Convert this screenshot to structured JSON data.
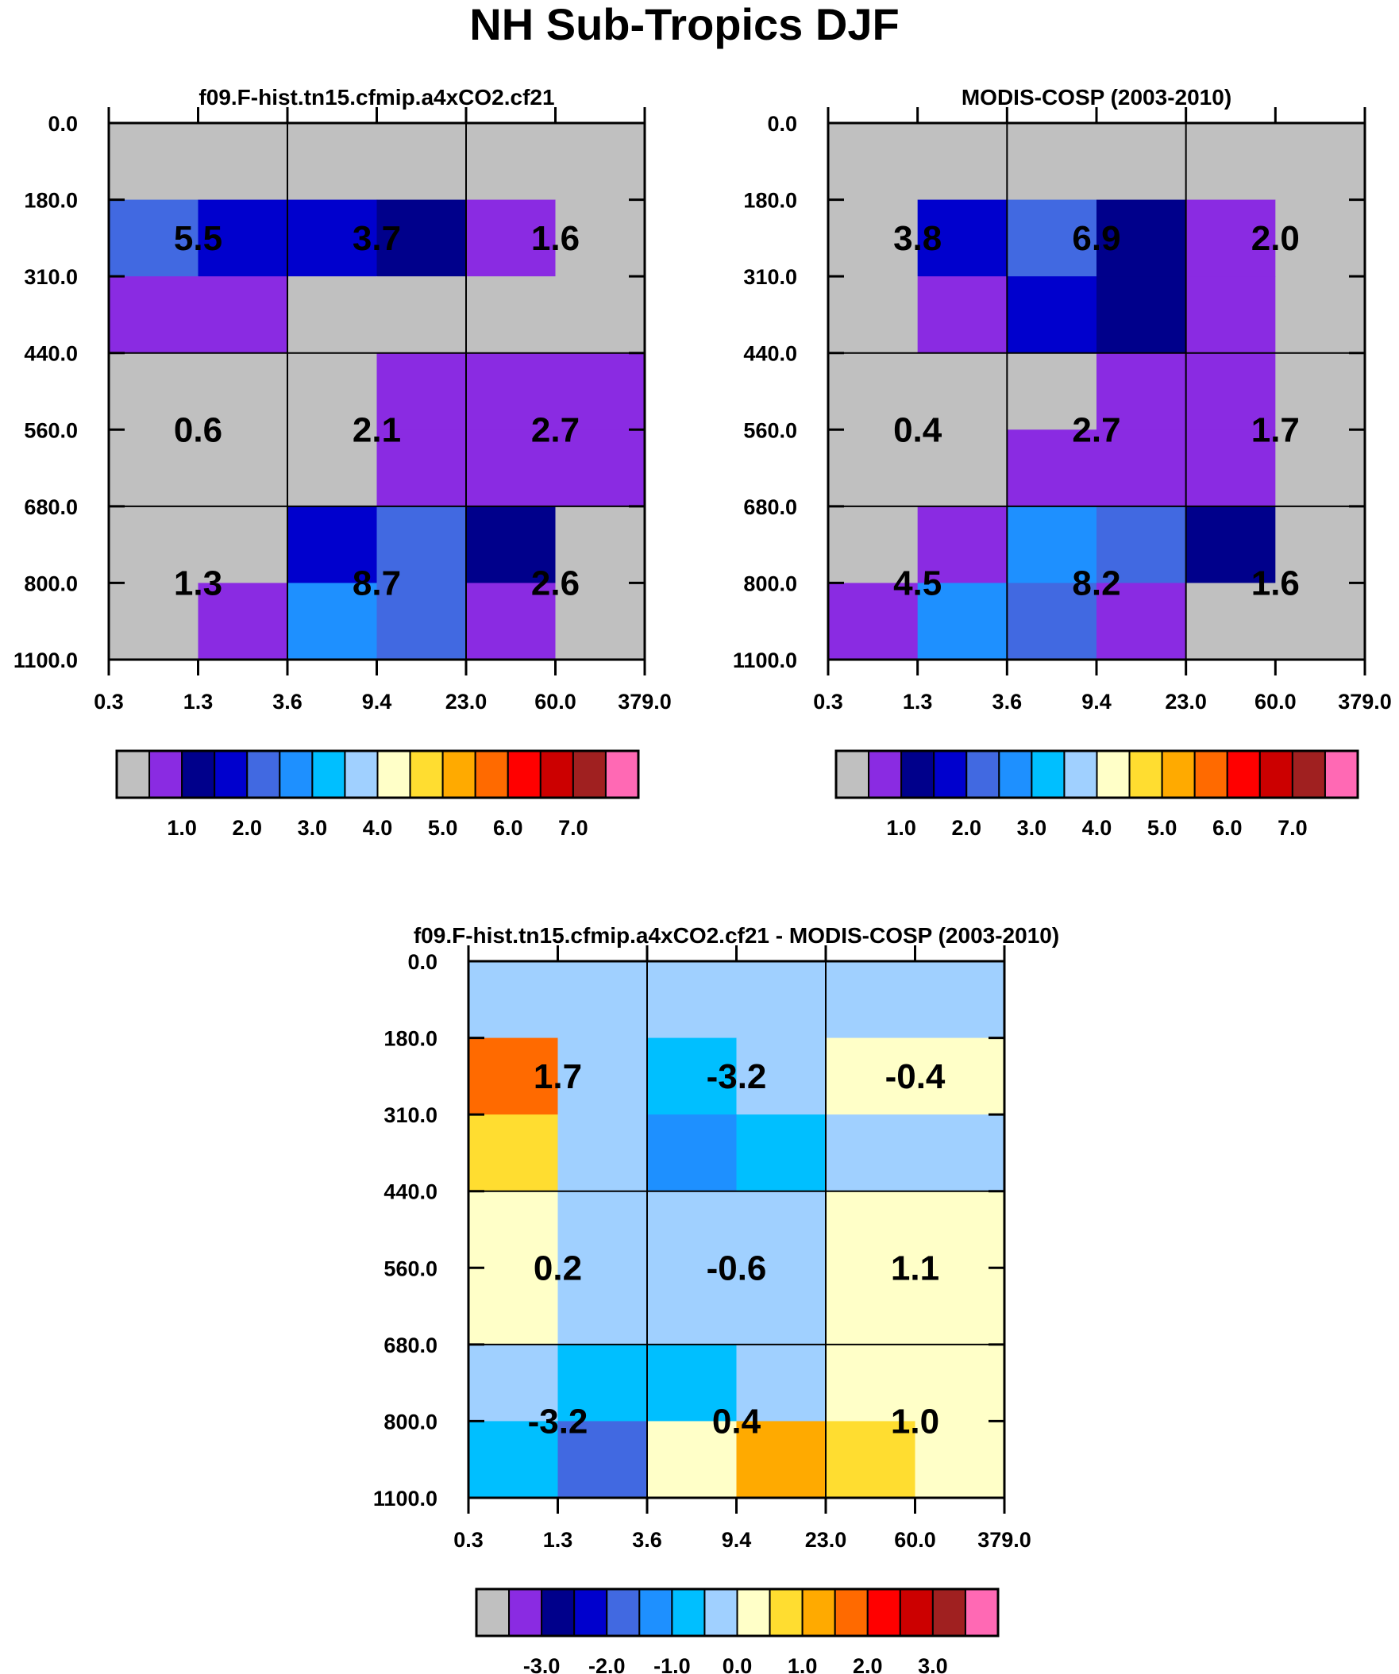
{
  "title": "NH Sub-Tropics DJF",
  "chart_data": [
    {
      "type": "heatmap",
      "title": "f09.F-hist.tn15.cfmip.a4xCO2.cf21",
      "x_ticks": [
        "0.3",
        "1.3",
        "3.6",
        "9.4",
        "23.0",
        "60.0",
        "379.0"
      ],
      "y_ticks": [
        "0.0",
        "180.0",
        "310.0",
        "440.0",
        "560.0",
        "680.0",
        "800.0",
        "1100.0"
      ],
      "cell_colors": [
        [
          "#c0c0c0",
          "#c0c0c0",
          "#c0c0c0",
          "#c0c0c0",
          "#c0c0c0",
          "#c0c0c0"
        ],
        [
          "#4169e1",
          "#0000cd",
          "#0000cd",
          "#00008b",
          "#8a2be2",
          "#c0c0c0"
        ],
        [
          "#8a2be2",
          "#8a2be2",
          "#c0c0c0",
          "#c0c0c0",
          "#c0c0c0",
          "#c0c0c0"
        ],
        [
          "#c0c0c0",
          "#c0c0c0",
          "#c0c0c0",
          "#8a2be2",
          "#8a2be2",
          "#8a2be2"
        ],
        [
          "#c0c0c0",
          "#c0c0c0",
          "#c0c0c0",
          "#8a2be2",
          "#8a2be2",
          "#8a2be2"
        ],
        [
          "#c0c0c0",
          "#c0c0c0",
          "#0000cd",
          "#4169e1",
          "#00008b",
          "#c0c0c0"
        ],
        [
          "#c0c0c0",
          "#8a2be2",
          "#1e90ff",
          "#4169e1",
          "#8a2be2",
          "#c0c0c0"
        ]
      ],
      "block_values": [
        [
          "5.5",
          "3.7",
          "1.6"
        ],
        [
          "0.6",
          "2.1",
          "2.7"
        ],
        [
          "1.3",
          "8.7",
          "2.6"
        ]
      ],
      "colorbar": {
        "colors": [
          "#c0c0c0",
          "#8a2be2",
          "#00008b",
          "#0000cd",
          "#4169e1",
          "#1e90ff",
          "#00bfff",
          "#a0d0ff",
          "#ffffc8",
          "#ffdd30",
          "#ffaa00",
          "#ff6a00",
          "#ff0000",
          "#cc0000",
          "#a02020",
          "#ff69b4"
        ],
        "labels": [
          "1.0",
          "2.0",
          "3.0",
          "4.0",
          "5.0",
          "6.0",
          "7.0"
        ]
      }
    },
    {
      "type": "heatmap",
      "title": "MODIS-COSP (2003-2010)",
      "x_ticks": [
        "0.3",
        "1.3",
        "3.6",
        "9.4",
        "23.0",
        "60.0",
        "379.0"
      ],
      "y_ticks": [
        "0.0",
        "180.0",
        "310.0",
        "440.0",
        "560.0",
        "680.0",
        "800.0",
        "1100.0"
      ],
      "cell_colors": [
        [
          "#c0c0c0",
          "#c0c0c0",
          "#c0c0c0",
          "#c0c0c0",
          "#c0c0c0",
          "#c0c0c0"
        ],
        [
          "#c0c0c0",
          "#0000cd",
          "#4169e1",
          "#00008b",
          "#8a2be2",
          "#c0c0c0"
        ],
        [
          "#c0c0c0",
          "#8a2be2",
          "#0000cd",
          "#00008b",
          "#8a2be2",
          "#c0c0c0"
        ],
        [
          "#c0c0c0",
          "#c0c0c0",
          "#c0c0c0",
          "#8a2be2",
          "#8a2be2",
          "#c0c0c0"
        ],
        [
          "#c0c0c0",
          "#c0c0c0",
          "#8a2be2",
          "#8a2be2",
          "#8a2be2",
          "#c0c0c0"
        ],
        [
          "#c0c0c0",
          "#8a2be2",
          "#1e90ff",
          "#4169e1",
          "#00008b",
          "#c0c0c0"
        ],
        [
          "#8a2be2",
          "#1e90ff",
          "#4169e1",
          "#8a2be2",
          "#c0c0c0",
          "#c0c0c0"
        ]
      ],
      "block_values": [
        [
          "3.8",
          "6.9",
          "2.0"
        ],
        [
          "0.4",
          "2.7",
          "1.7"
        ],
        [
          "4.5",
          "8.2",
          "1.6"
        ]
      ],
      "colorbar": {
        "colors": [
          "#c0c0c0",
          "#8a2be2",
          "#00008b",
          "#0000cd",
          "#4169e1",
          "#1e90ff",
          "#00bfff",
          "#a0d0ff",
          "#ffffc8",
          "#ffdd30",
          "#ffaa00",
          "#ff6a00",
          "#ff0000",
          "#cc0000",
          "#a02020",
          "#ff69b4"
        ],
        "labels": [
          "1.0",
          "2.0",
          "3.0",
          "4.0",
          "5.0",
          "6.0",
          "7.0"
        ]
      }
    },
    {
      "type": "heatmap",
      "title": "f09.F-hist.tn15.cfmip.a4xCO2.cf21 - MODIS-COSP (2003-2010)",
      "x_ticks": [
        "0.3",
        "1.3",
        "3.6",
        "9.4",
        "23.0",
        "60.0",
        "379.0"
      ],
      "y_ticks": [
        "0.0",
        "180.0",
        "310.0",
        "440.0",
        "560.0",
        "680.0",
        "800.0",
        "1100.0"
      ],
      "cell_colors": [
        [
          "#a0d0ff",
          "#a0d0ff",
          "#a0d0ff",
          "#a0d0ff",
          "#a0d0ff",
          "#a0d0ff"
        ],
        [
          "#ff6a00",
          "#a0d0ff",
          "#00bfff",
          "#a0d0ff",
          "#ffffc8",
          "#ffffc8"
        ],
        [
          "#ffdd30",
          "#a0d0ff",
          "#1e90ff",
          "#00bfff",
          "#a0d0ff",
          "#a0d0ff"
        ],
        [
          "#ffffc8",
          "#a0d0ff",
          "#a0d0ff",
          "#a0d0ff",
          "#ffffc8",
          "#ffffc8"
        ],
        [
          "#ffffc8",
          "#a0d0ff",
          "#a0d0ff",
          "#a0d0ff",
          "#ffffc8",
          "#ffffc8"
        ],
        [
          "#a0d0ff",
          "#00bfff",
          "#00bfff",
          "#a0d0ff",
          "#ffffc8",
          "#ffffc8"
        ],
        [
          "#00bfff",
          "#4169e1",
          "#ffffc8",
          "#ffaa00",
          "#ffdd30",
          "#ffffc8"
        ]
      ],
      "block_values": [
        [
          "1.7",
          "-3.2",
          "-0.4"
        ],
        [
          "0.2",
          "-0.6",
          "1.1"
        ],
        [
          "-3.2",
          "0.4",
          "1.0"
        ]
      ],
      "colorbar": {
        "colors": [
          "#c0c0c0",
          "#8a2be2",
          "#00008b",
          "#0000cd",
          "#4169e1",
          "#1e90ff",
          "#00bfff",
          "#a0d0ff",
          "#ffffc8",
          "#ffdd30",
          "#ffaa00",
          "#ff6a00",
          "#ff0000",
          "#cc0000",
          "#a02020",
          "#ff69b4"
        ],
        "labels": [
          "-3.0",
          "-2.0",
          "-1.0",
          "0.0",
          "1.0",
          "2.0",
          "3.0"
        ]
      }
    }
  ]
}
